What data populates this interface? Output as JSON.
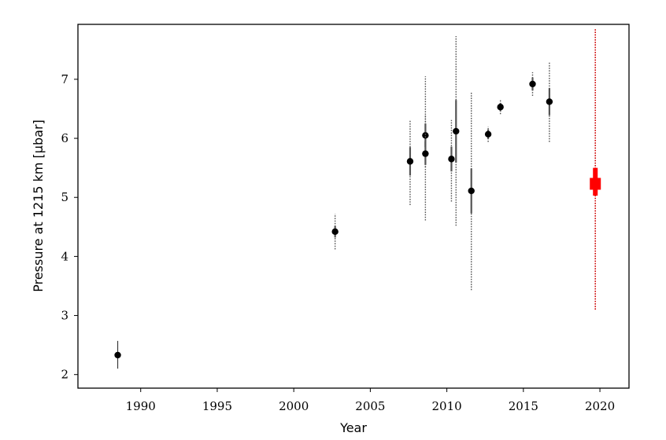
{
  "chart_data": {
    "type": "scatter",
    "title": "",
    "xlabel": "Year",
    "ylabel": "Pressure at 1215 km [μbar]",
    "xlim": [
      1985.9,
      2021.9
    ],
    "ylim": [
      1.77,
      7.93
    ],
    "xticks": [
      1990,
      1995,
      2000,
      2005,
      2010,
      2015,
      2020
    ],
    "yticks": [
      2,
      3,
      4,
      5,
      6,
      7
    ],
    "grid": false,
    "legend": "none",
    "colors": {
      "points": "#000000",
      "errorbars": "#555555",
      "highlight": "#ff0000",
      "highlight_line": "#cc0000"
    },
    "points": [
      {
        "x": 1988.5,
        "y": 2.33,
        "err": [
          2.1,
          2.57
        ],
        "err_style": "solid"
      },
      {
        "x": 2002.7,
        "y": 4.42,
        "err": [
          4.12,
          4.72
        ],
        "err_style": "dotted",
        "inner": [
          4.32,
          4.52
        ]
      },
      {
        "x": 2007.6,
        "y": 5.61,
        "err": [
          4.87,
          6.3
        ],
        "err_style": "dotted",
        "inner": [
          5.37,
          5.85
        ]
      },
      {
        "x": 2008.6,
        "y": 6.05,
        "err": [
          5.51,
          6.4
        ],
        "err_style": "dotted",
        "inner": [
          5.85,
          6.25
        ]
      },
      {
        "x": 2008.6,
        "y": 5.74,
        "err": [
          4.61,
          7.05
        ],
        "err_style": "dotted",
        "inner": [
          5.55,
          5.95
        ]
      },
      {
        "x": 2010.3,
        "y": 5.65,
        "err": [
          4.93,
          6.31
        ],
        "err_style": "dotted",
        "inner": [
          5.44,
          5.86
        ]
      },
      {
        "x": 2010.6,
        "y": 6.12,
        "err": [
          4.52,
          7.73
        ],
        "err_style": "dotted",
        "inner": [
          5.59,
          6.65
        ]
      },
      {
        "x": 2011.6,
        "y": 5.11,
        "err": [
          3.43,
          6.79
        ],
        "err_style": "dotted",
        "inner": [
          4.73,
          5.49
        ]
      },
      {
        "x": 2012.7,
        "y": 6.07,
        "err": [
          5.94,
          6.2
        ],
        "err_style": "dotted",
        "inner": [
          5.99,
          6.15
        ]
      },
      {
        "x": 2013.5,
        "y": 6.53,
        "err": [
          6.41,
          6.65
        ],
        "err_style": "dotted",
        "inner": [
          6.46,
          6.6
        ]
      },
      {
        "x": 2015.6,
        "y": 6.92,
        "err": [
          6.72,
          7.12
        ],
        "err_style": "dotted",
        "inner": [
          6.81,
          7.03
        ]
      },
      {
        "x": 2016.7,
        "y": 6.62,
        "err": [
          5.94,
          7.3
        ],
        "err_style": "dotted",
        "inner": [
          6.39,
          6.85
        ]
      }
    ],
    "highlight": {
      "x": 2019.7,
      "y": 5.23,
      "err_outer": [
        3.1,
        7.85
      ],
      "err_mid": [
        5.03,
        5.5
      ],
      "err_inner": [
        5.13,
        5.33
      ]
    }
  }
}
